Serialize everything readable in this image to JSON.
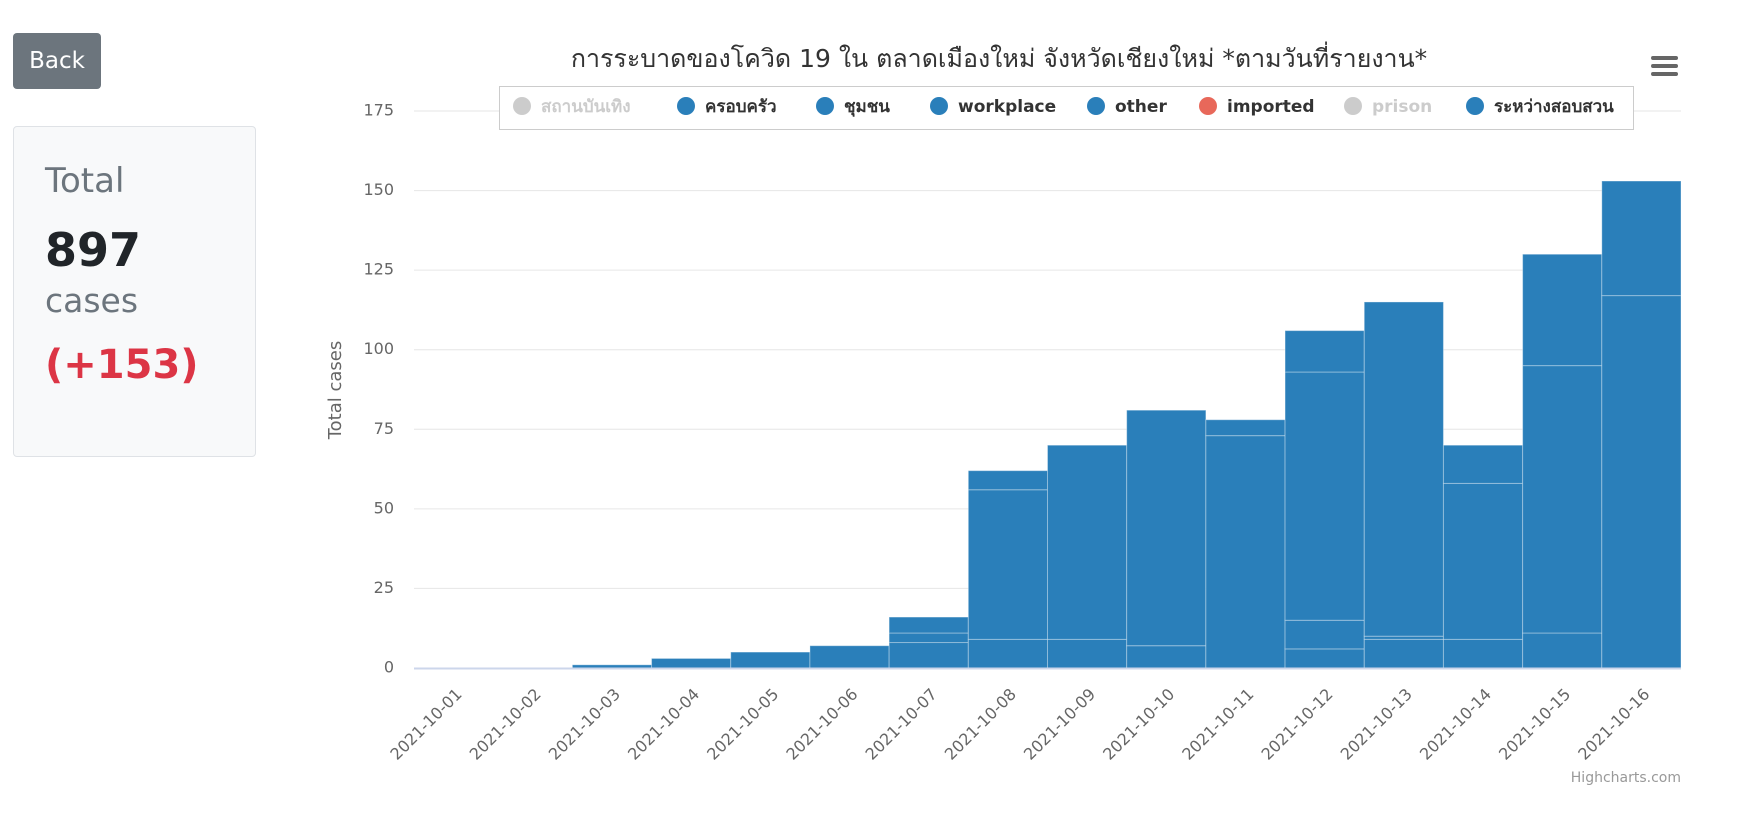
{
  "page": {
    "back": "Back",
    "summary": {
      "title": "Total",
      "count": 897,
      "unit": "cases",
      "change": "(+153)"
    }
  },
  "chart_data": {
    "type": "bar",
    "stacking": "normal",
    "title": "การระบาดของโควิด 19 ใน ตลาดเมืองใหม่ จังหวัดเชียงใหม่ *ตามวันที่รายงาน*",
    "y_label": "Total cases",
    "credits": "Highcharts.com",
    "categories": [
      "2021-10-01",
      "2021-10-02",
      "2021-10-03",
      "2021-10-04",
      "2021-10-05",
      "2021-10-06",
      "2021-10-07",
      "2021-10-08",
      "2021-10-09",
      "2021-10-10",
      "2021-10-11",
      "2021-10-12",
      "2021-10-13",
      "2021-10-14",
      "2021-10-15",
      "2021-10-16"
    ],
    "ylim": [
      0,
      175
    ],
    "yticks": [
      0,
      25,
      50,
      75,
      100,
      125,
      150,
      175
    ],
    "grid": true,
    "legend": "top",
    "series": [
      {
        "name": "สถานบันเทิง",
        "color": "#cccccc",
        "visible": false,
        "values": [
          null,
          null,
          null,
          null,
          null,
          null,
          null,
          null,
          null,
          null,
          null,
          null,
          null,
          null,
          null,
          null
        ]
      },
      {
        "name": "ครอบครัว",
        "color": "#2a7fba",
        "values": [
          0,
          0,
          0,
          0,
          0,
          0,
          0,
          0,
          0,
          0,
          0,
          0,
          0,
          0,
          0,
          0
        ]
      },
      {
        "name": "ชุมชน",
        "color": "#2a7fba",
        "values": [
          0,
          0,
          0,
          0,
          0,
          0,
          0,
          0,
          0,
          0,
          0,
          13,
          0,
          0,
          0,
          0
        ]
      },
      {
        "name": "workplace",
        "color": "#2a7fba",
        "values": [
          0,
          0,
          0,
          0,
          0,
          0,
          5,
          6,
          0,
          0,
          0,
          78,
          105,
          12,
          35,
          0
        ]
      },
      {
        "name": "other",
        "color": "#2a7fba",
        "values": [
          0,
          0,
          0,
          0,
          0,
          0,
          3,
          47,
          61,
          74,
          5,
          9,
          1,
          49,
          84,
          36
        ]
      },
      {
        "name": "imported",
        "color": "#e8685a",
        "values": [
          0,
          0,
          0,
          0,
          0,
          0,
          0,
          0,
          0,
          0,
          0,
          0,
          0,
          0,
          0,
          0
        ]
      },
      {
        "name": "prison",
        "color": "#cccccc",
        "visible": false,
        "values": [
          null,
          null,
          null,
          null,
          null,
          null,
          null,
          null,
          null,
          null,
          null,
          null,
          null,
          null,
          null,
          null
        ]
      },
      {
        "name": "ระหว่างสอบสวน",
        "color": "#2a7fba",
        "values": [
          0,
          0,
          1,
          3,
          5,
          7,
          8,
          9,
          9,
          7,
          73,
          6,
          9,
          9,
          11,
          117
        ]
      }
    ]
  }
}
